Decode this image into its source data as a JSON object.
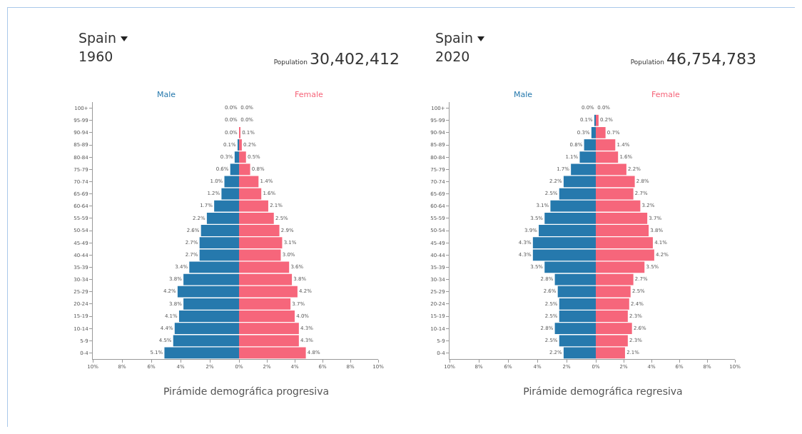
{
  "chart_data": [
    {
      "type": "bar",
      "orientation": "horizontal",
      "title": "Spain",
      "subtitle": "1960",
      "annotations": [
        "Population",
        "30,402,412",
        "Pirámide demográfica progresiva"
      ],
      "categories": [
        "100+",
        "95-99",
        "90-94",
        "85-89",
        "80-84",
        "75-79",
        "70-74",
        "65-69",
        "60-64",
        "55-59",
        "50-54",
        "45-49",
        "40-44",
        "35-39",
        "30-34",
        "25-29",
        "20-24",
        "15-19",
        "10-14",
        "5-9",
        "0-4"
      ],
      "series": [
        {
          "name": "Male",
          "color": "#2679ad",
          "values": [
            0.0,
            0.0,
            0.0,
            0.1,
            0.3,
            0.6,
            1.0,
            1.2,
            1.7,
            2.2,
            2.6,
            2.7,
            2.7,
            3.4,
            3.8,
            4.2,
            3.8,
            4.1,
            4.4,
            4.5,
            5.1
          ],
          "value_labels": [
            "0.0%",
            "0.0%",
            "0.0%",
            "0.1%",
            "0.3%",
            "0.6%",
            "1.0%",
            "1.2%",
            "1.7%",
            "2.2%",
            "2.6%",
            "2.7%",
            "2.7%",
            "3.4%",
            "3.8%",
            "4.2%",
            "3.8%",
            "4.1%",
            "4.4%",
            "4.5%",
            "5.1%"
          ]
        }
      ],
      "xlim": [
        10,
        0
      ],
      "xticks": [
        {
          "value": 10,
          "label": "10%"
        },
        {
          "value": 8,
          "label": "8%"
        },
        {
          "value": 6,
          "label": "6%"
        },
        {
          "value": 4,
          "label": "4%"
        },
        {
          "value": 2,
          "label": "2%"
        },
        {
          "value": 0,
          "label": null
        }
      ],
      "grid": false,
      "legend": false
    },
    {
      "type": "bar",
      "orientation": "horizontal",
      "categories": [
        null,
        null,
        null,
        null,
        null,
        null,
        null,
        null,
        null,
        null,
        null,
        null,
        null,
        null,
        null,
        null,
        null,
        null,
        null,
        null,
        null
      ],
      "series": [
        {
          "name": "Female",
          "color": "#f6667b",
          "values": [
            0.0,
            0.0,
            0.1,
            0.2,
            0.5,
            0.8,
            1.4,
            1.6,
            2.1,
            2.5,
            2.9,
            3.1,
            3.0,
            3.6,
            3.8,
            4.2,
            3.7,
            4.0,
            4.3,
            4.3,
            4.8
          ],
          "value_labels": [
            "0.0%",
            "0.0%",
            "0.1%",
            "0.2%",
            "0.5%",
            "0.8%",
            "1.4%",
            "1.6%",
            "2.1%",
            "2.5%",
            "2.9%",
            "3.1%",
            "3.0%",
            "3.6%",
            "3.8%",
            "4.2%",
            "3.7%",
            "4.0%",
            "4.3%",
            "4.3%",
            "4.8%"
          ]
        }
      ],
      "xlim": [
        0,
        10
      ],
      "xticks": [
        {
          "value": 0,
          "label": "0%"
        },
        {
          "value": 2,
          "label": "2%"
        },
        {
          "value": 4,
          "label": "4%"
        },
        {
          "value": 6,
          "label": "6%"
        },
        {
          "value": 8,
          "label": "8%"
        },
        {
          "value": 10,
          "label": "10%"
        }
      ],
      "tick_labels": "x",
      "grid": false,
      "legend": false
    },
    {
      "type": "bar",
      "orientation": "horizontal",
      "title": "Spain",
      "subtitle": "2020",
      "annotations": [
        "Population",
        "46,754,783",
        "Pirámide demográfica regresiva"
      ],
      "categories": [
        "100+",
        "95-99",
        "90-94",
        "85-89",
        "80-84",
        "75-79",
        "70-74",
        "65-69",
        "60-64",
        "55-59",
        "50-54",
        "45-49",
        "40-44",
        "35-39",
        "30-34",
        "25-29",
        "20-24",
        "15-19",
        "10-14",
        "5-9",
        "0-4"
      ],
      "series": [
        {
          "name": "Male",
          "color": "#2679ad",
          "values": [
            0.0,
            0.1,
            0.3,
            0.8,
            1.1,
            1.7,
            2.2,
            2.5,
            3.1,
            3.5,
            3.9,
            4.3,
            4.3,
            3.5,
            2.8,
            2.6,
            2.5,
            2.5,
            2.8,
            2.5,
            2.2
          ],
          "value_labels": [
            "0.0%",
            "0.1%",
            "0.3%",
            "0.8%",
            "1.1%",
            "1.7%",
            "2.2%",
            "2.5%",
            "3.1%",
            "3.5%",
            "3.9%",
            "4.3%",
            "4.3%",
            "3.5%",
            "2.8%",
            "2.6%",
            "2.5%",
            "2.5%",
            "2.8%",
            "2.5%",
            "2.2%"
          ]
        }
      ],
      "xlim": [
        10,
        0
      ],
      "xticks": [
        {
          "value": 10,
          "label": "10%"
        },
        {
          "value": 8,
          "label": "8%"
        },
        {
          "value": 6,
          "label": "6%"
        },
        {
          "value": 4,
          "label": "4%"
        },
        {
          "value": 2,
          "label": "2%"
        },
        {
          "value": 0,
          "label": null
        }
      ],
      "grid": false,
      "legend": false
    },
    {
      "type": "bar",
      "orientation": "horizontal",
      "categories": [
        null,
        null,
        null,
        null,
        null,
        null,
        null,
        null,
        null,
        null,
        null,
        null,
        null,
        null,
        null,
        null,
        null,
        null,
        null,
        null,
        null
      ],
      "series": [
        {
          "name": "Female",
          "color": "#f6667b",
          "values": [
            0.0,
            0.2,
            0.7,
            1.4,
            1.6,
            2.2,
            2.8,
            2.7,
            3.2,
            3.7,
            3.8,
            4.1,
            4.2,
            3.5,
            2.7,
            2.5,
            2.4,
            2.3,
            2.6,
            2.3,
            2.1
          ],
          "value_labels": [
            "0.0%",
            "0.2%",
            "0.7%",
            "1.4%",
            "1.6%",
            "2.2%",
            "2.8%",
            "2.7%",
            "3.2%",
            "3.7%",
            "3.8%",
            "4.1%",
            "4.2%",
            "3.5%",
            "2.7%",
            "2.5%",
            "2.4%",
            "2.3%",
            "2.6%",
            "2.3%",
            "2.1%"
          ]
        }
      ],
      "xlim": [
        0,
        10
      ],
      "xticks": [
        {
          "value": 0,
          "label": "0%"
        },
        {
          "value": 2,
          "label": "2%"
        },
        {
          "value": 4,
          "label": "4%"
        },
        {
          "value": 6,
          "label": "6%"
        },
        {
          "value": 8,
          "label": "8%"
        },
        {
          "value": 10,
          "label": "10%"
        }
      ],
      "tick_labels": "x",
      "grid": false,
      "legend": false
    }
  ]
}
